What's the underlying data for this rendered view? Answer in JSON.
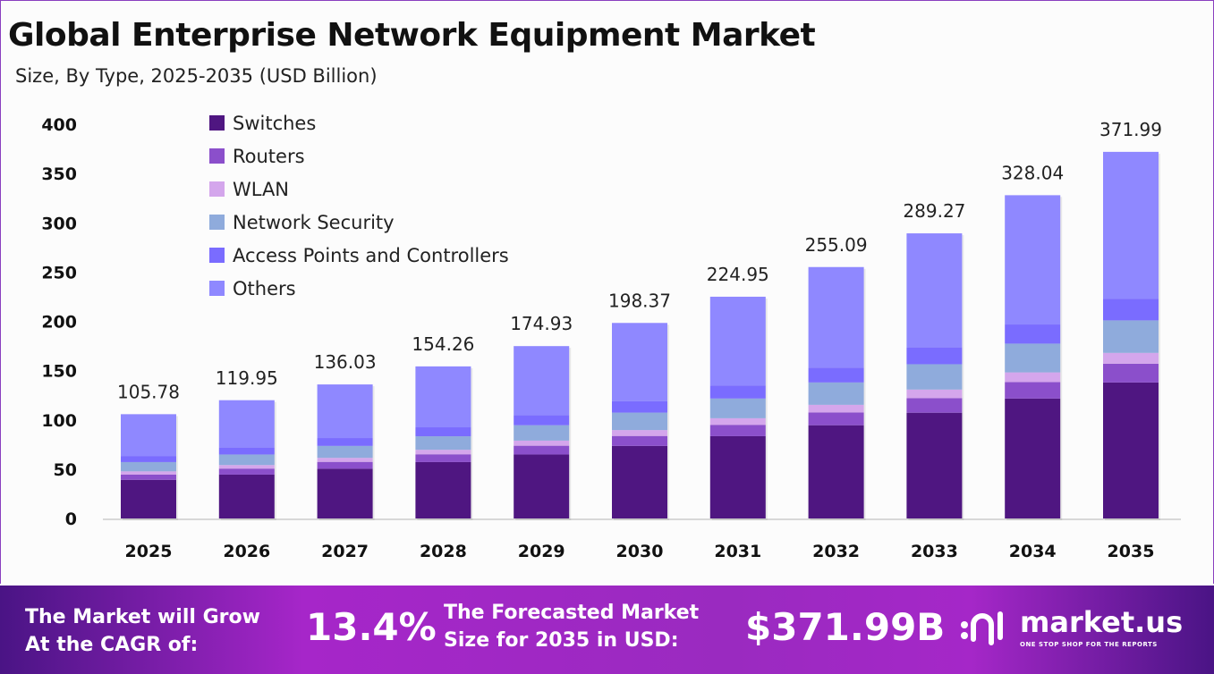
{
  "chart_data": {
    "type": "bar",
    "stacked": true,
    "title": "Global Enterprise Network Equipment Market",
    "subtitle": "Size, By Type, 2025-2035 (USD Billion)",
    "categories": [
      "2025",
      "2026",
      "2027",
      "2028",
      "2029",
      "2030",
      "2031",
      "2032",
      "2033",
      "2034",
      "2035"
    ],
    "totals": [
      "105.78",
      "119.95",
      "136.03",
      "154.26",
      "174.93",
      "198.37",
      "224.95",
      "255.09",
      "289.27",
      "328.04",
      "371.99"
    ],
    "series": [
      {
        "name": "Switches",
        "color": "#4f1681",
        "values": [
          39.2,
          44.5,
          50.5,
          57.2,
          64.9,
          73.6,
          83.5,
          94.6,
          107.3,
          121.7,
          138.0
        ]
      },
      {
        "name": "Routers",
        "color": "#8b4fcb",
        "values": [
          5.4,
          6.1,
          6.9,
          7.9,
          8.9,
          10.1,
          11.5,
          13.0,
          14.8,
          16.7,
          19.0
        ]
      },
      {
        "name": "WLAN",
        "color": "#d4a6ec",
        "values": [
          3.2,
          3.6,
          4.1,
          4.6,
          5.2,
          6.0,
          6.7,
          7.7,
          8.7,
          9.8,
          11.0
        ]
      },
      {
        "name": "Network Security",
        "color": "#8fabdc",
        "values": [
          9.4,
          10.7,
          12.1,
          13.7,
          15.6,
          17.7,
          20.0,
          22.7,
          25.7,
          29.2,
          33.0
        ]
      },
      {
        "name": "Access Points and Controllers",
        "color": "#7a6cff",
        "values": [
          6.2,
          7.1,
          8.0,
          9.1,
          10.3,
          11.7,
          13.3,
          15.1,
          17.1,
          19.4,
          22.0
        ]
      },
      {
        "name": "Others",
        "color": "#8f88ff",
        "values": [
          42.4,
          48.0,
          54.4,
          61.8,
          70.0,
          79.3,
          90.0,
          102.0,
          115.7,
          131.2,
          149.0
        ]
      }
    ],
    "yticks": [
      "0",
      "50",
      "100",
      "150",
      "200",
      "250",
      "300",
      "350",
      "400"
    ],
    "ylim": [
      0,
      400
    ],
    "grid": false,
    "legend": "top-left"
  },
  "footer": {
    "cagr_label": "The Market will Grow At the CAGR of:",
    "cagr_l1": "The Market will Grow",
    "cagr_l2": "At the CAGR of:",
    "cagr_value": "13.4%",
    "forecast_l1": "The Forecasted Market",
    "forecast_l2": "Size for 2035 in USD:",
    "forecast_value": "$371.99B",
    "brand": "market.us",
    "tagline": "ONE STOP SHOP FOR THE REPORTS"
  }
}
